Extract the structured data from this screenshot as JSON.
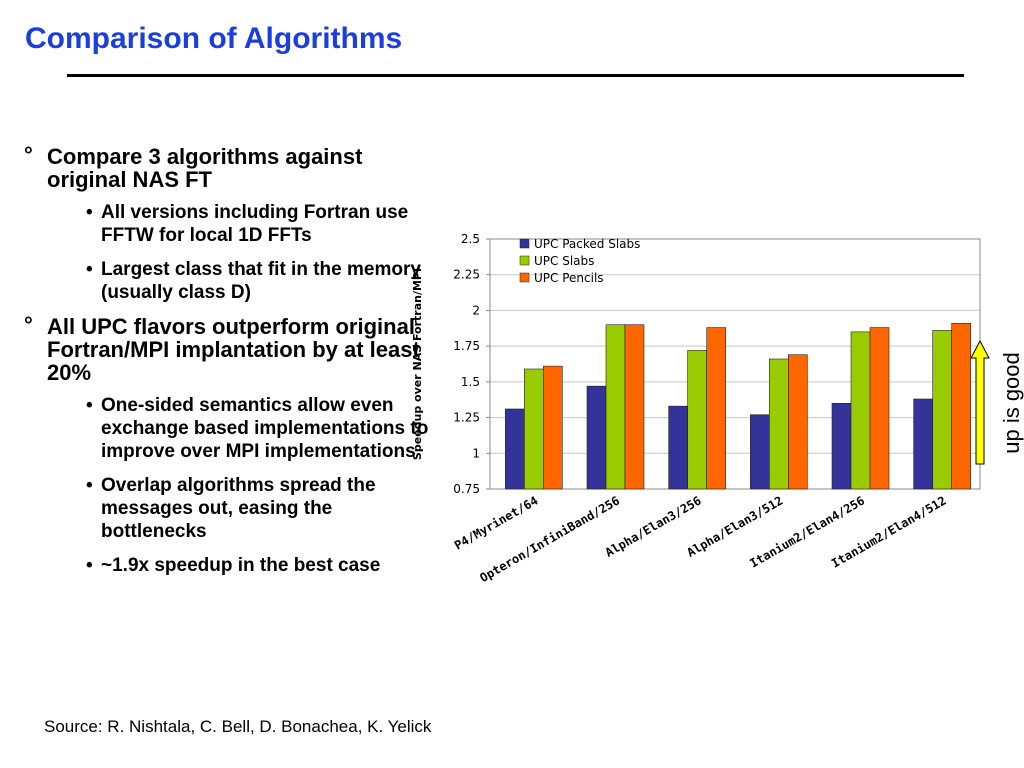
{
  "slide": {
    "title": "Comparison of Algorithms",
    "source": "Source:  R. Nishtala, C. Bell, D. Bonachea, K. Yelick",
    "side_label": "up is good"
  },
  "bullets": {
    "b1": {
      "mark": "°",
      "text": "Compare 3 algorithms against original NAS FT"
    },
    "b1a": {
      "mark": "•",
      "text": "All versions including Fortran use FFTW for local 1D FFTs"
    },
    "b1b": {
      "mark": "•",
      "text": "Largest class that fit in the memory (usually class D)"
    },
    "b2": {
      "mark": "°",
      "text": "All UPC flavors outperform original Fortran/MPI implantation by at least 20%"
    },
    "b2a": {
      "mark": "•",
      "text": "One-sided semantics allow even exchange based implementations to improve over MPI implementations"
    },
    "b2b": {
      "mark": "•",
      "text": "Overlap algorithms spread the messages out, easing the bottlenecks"
    },
    "b2c": {
      "mark": "•",
      "text": "~1.9x speedup in the best case"
    }
  },
  "chart_data": {
    "type": "bar",
    "title": "",
    "xlabel": "",
    "ylabel": "Speedup over NAS Fortran/MPI",
    "ylim": [
      0.75,
      2.5
    ],
    "yticks": [
      "0.75",
      "1",
      "1.25",
      "1.5",
      "1.75",
      "2",
      "2.25",
      "2.5"
    ],
    "grid": true,
    "legend_position": "top-left",
    "categories": [
      "P4/Myrinet/64",
      "Opteron/InfiniBand/256",
      "Alpha/Elan3/256",
      "Alpha/Elan3/512",
      "Itanium2/Elan4/256",
      "Itanium2/Elan4/512"
    ],
    "series": [
      {
        "name": "UPC Packed Slabs",
        "color": "#33339a",
        "values": [
          1.31,
          1.47,
          1.33,
          1.27,
          1.35,
          1.38
        ]
      },
      {
        "name": "UPC Slabs",
        "color": "#99cc00",
        "values": [
          1.59,
          1.9,
          1.72,
          1.66,
          1.85,
          1.86
        ]
      },
      {
        "name": "UPC Pencils",
        "color": "#ff6600",
        "values": [
          1.61,
          1.9,
          1.88,
          1.69,
          1.88,
          1.91
        ]
      }
    ]
  },
  "colors": {
    "title": "#1a3ee0",
    "arrow_fill": "#ffff00"
  }
}
